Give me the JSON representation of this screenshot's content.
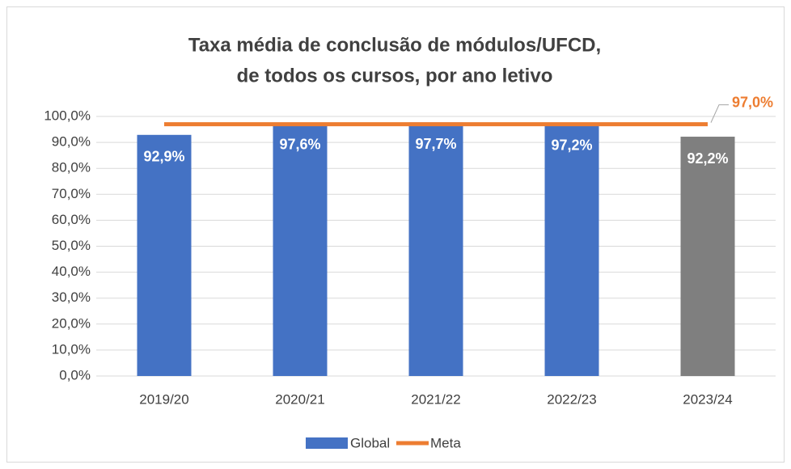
{
  "chart_data": {
    "type": "bar",
    "title": [
      "Taxa média de conclusão de módulos/UFCD,",
      "de todos os cursos,  por ano letivo"
    ],
    "categories": [
      "2019/20",
      "2020/21",
      "2021/22",
      "2022/23",
      "2023/24"
    ],
    "series": [
      {
        "name": "Global",
        "type": "bar",
        "colors": [
          "#4472c4",
          "#4472c4",
          "#4472c4",
          "#4472c4",
          "#7f7f7f"
        ],
        "values": [
          92.9,
          97.6,
          97.7,
          97.2,
          92.2
        ],
        "value_labels": [
          "92,9%",
          "97,6%",
          "97,7%",
          "97,2%",
          "92,2%"
        ]
      },
      {
        "name": "Meta",
        "type": "line",
        "color": "#ed7d31",
        "values": [
          97.0,
          97.0,
          97.0,
          97.0,
          97.0
        ],
        "value_labels": [
          null,
          null,
          null,
          null,
          "97,0%"
        ]
      }
    ],
    "ylim": [
      0,
      100
    ],
    "yticks": [
      {
        "value": 0,
        "label": "0,0%"
      },
      {
        "value": 10,
        "label": "10,0%"
      },
      {
        "value": 20,
        "label": "20,0%"
      },
      {
        "value": 30,
        "label": "30,0%"
      },
      {
        "value": 40,
        "label": "40,0%"
      },
      {
        "value": 50,
        "label": "50,0%"
      },
      {
        "value": 60,
        "label": "60,0%"
      },
      {
        "value": 70,
        "label": "70,0%"
      },
      {
        "value": 80,
        "label": "80,0%"
      },
      {
        "value": 90,
        "label": "90,0%"
      },
      {
        "value": 100,
        "label": "100,0%"
      }
    ],
    "grid": true,
    "legend": "bottom"
  }
}
